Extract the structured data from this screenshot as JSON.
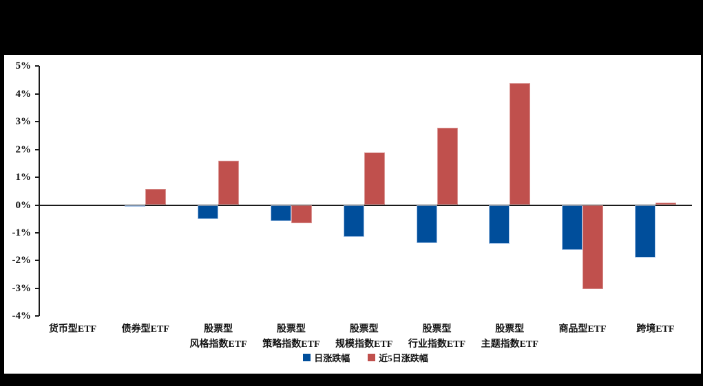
{
  "chart_data": {
    "type": "bar",
    "title": "",
    "xlabel": "",
    "ylabel": "",
    "ylim": [
      -4,
      5
    ],
    "grid": false,
    "legend_position": "bottom",
    "yticks": [
      "5%",
      "4%",
      "3%",
      "2%",
      "1%",
      "0%",
      "-1%",
      "-2%",
      "-3%",
      "-4%"
    ],
    "ytick_values": [
      5,
      4,
      3,
      2,
      1,
      0,
      -1,
      -2,
      -3,
      -4
    ],
    "categories": [
      "货币型ETF",
      "债券型ETF",
      "股票型\n风格指数ETF",
      "股票型\n策略指数ETF",
      "股票型\n规模指数ETF",
      "股票型\n行业指数ETF",
      "股票型\n主题指数ETF",
      "商品型ETF",
      "跨境ETF"
    ],
    "series": [
      {
        "name": "日涨跌幅",
        "key": "day-change",
        "color": "#004E9B",
        "edge": "#A9C5E8",
        "values": [
          0.0,
          -0.05,
          -0.5,
          -0.59,
          -1.16,
          -1.38,
          -1.39,
          -1.62,
          -1.89
        ]
      },
      {
        "name": "近5日涨跌幅",
        "key": "5day-change",
        "color": "#C0504D",
        "edge": "#DA9694",
        "values": [
          0.0,
          0.58,
          1.6,
          -0.65,
          1.88,
          2.77,
          4.38,
          -3.04,
          0.09
        ]
      }
    ],
    "colors": {
      "axis": "#1a1a1a",
      "background_panel": "#ffffff",
      "background_page": "#000000"
    }
  }
}
